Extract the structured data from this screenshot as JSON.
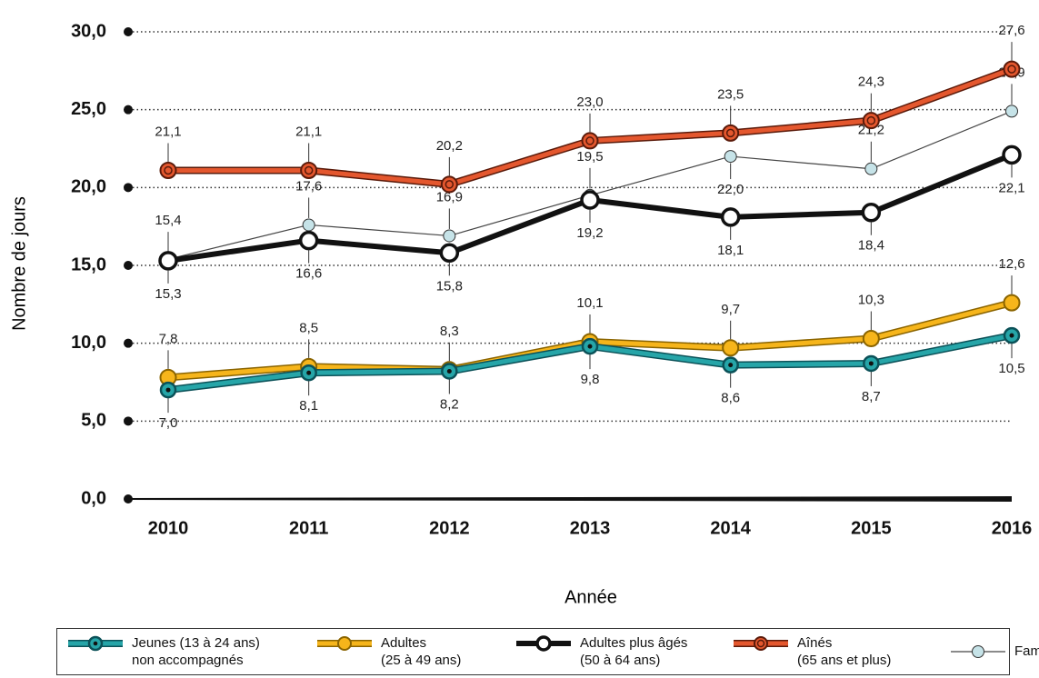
{
  "chart_data": {
    "type": "line",
    "y_label": "Nombre de jours",
    "x_label": "Année",
    "categories": [
      "2010",
      "2011",
      "2012",
      "2013",
      "2014",
      "2015",
      "2016"
    ],
    "ylim": [
      0,
      30
    ],
    "yticks": [
      {
        "value": 0,
        "label": "0,0"
      },
      {
        "value": 5,
        "label": "5,0"
      },
      {
        "value": 10,
        "label": "10,0"
      },
      {
        "value": 15,
        "label": "15,0"
      },
      {
        "value": 20,
        "label": "20,0"
      },
      {
        "value": 25,
        "label": "25,0"
      },
      {
        "value": 30,
        "label": "30,0"
      }
    ],
    "grid": true,
    "series": [
      {
        "name": "Jeunes (13 à 24 ans) non accompagnés",
        "color": "#26a5a8",
        "values": [
          7.0,
          8.1,
          8.2,
          9.8,
          8.6,
          8.7,
          10.5
        ],
        "value_labels": [
          "7,0",
          "8,1",
          "8,2",
          "9,8",
          "8,6",
          "8,7",
          "10,5"
        ]
      },
      {
        "name": "Adultes (25 à 49 ans)",
        "color": "#f6b51b",
        "values": [
          7.8,
          8.5,
          8.3,
          10.1,
          9.7,
          10.3,
          12.6
        ],
        "value_labels": [
          "7,8",
          "8,5",
          "8,3",
          "10,1",
          "9,7",
          "10,3",
          "12,6"
        ]
      },
      {
        "name": "Adultes plus âgés (50 à 64 ans)",
        "color": "#111111",
        "values": [
          15.3,
          16.6,
          15.8,
          19.2,
          18.1,
          18.4,
          22.1
        ],
        "value_labels": [
          "15,3",
          "16,6",
          "15,8",
          "19,2",
          "18,1",
          "18,4",
          "22,1"
        ]
      },
      {
        "name": "Aînés (65 ans et plus)",
        "color": "#e4572e",
        "values": [
          21.1,
          21.1,
          20.2,
          23.0,
          23.5,
          24.3,
          27.6
        ],
        "value_labels": [
          "21,1",
          "21,1",
          "20,2",
          "23,0",
          "23,5",
          "24,3",
          "27,6"
        ]
      },
      {
        "name": "Familles",
        "color": "#c6e3e8",
        "values": [
          15.4,
          17.6,
          16.9,
          19.5,
          22.0,
          21.2,
          24.9
        ],
        "value_labels": [
          "15,4",
          "17,6",
          "16,9",
          "19,5",
          "22,0",
          "21,2",
          "24,9"
        ]
      }
    ]
  }
}
